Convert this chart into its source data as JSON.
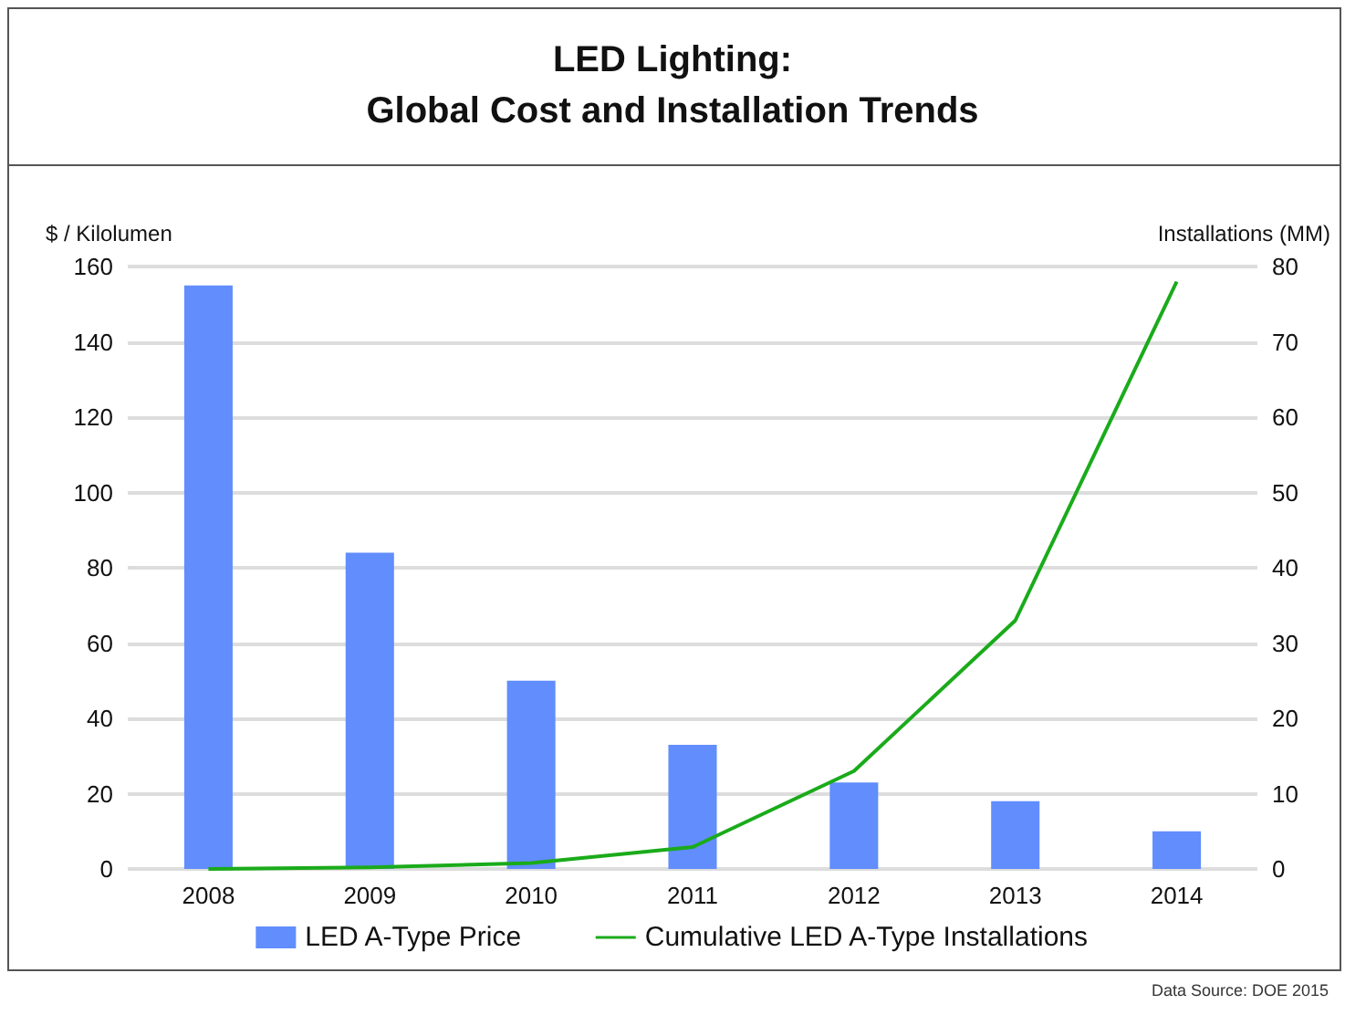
{
  "chart_data": {
    "type": "bar",
    "title": "LED Lighting:\nGlobal Cost and Installation Trends",
    "ylabel": "$ / Kilolumen",
    "y2label": "Installations (MM)",
    "categories": [
      "2008",
      "2009",
      "2010",
      "2011",
      "2012",
      "2013",
      "2014"
    ],
    "series": [
      {
        "name": "LED A-Type Price",
        "color": "#618dfd",
        "values": [
          155,
          84,
          50,
          33,
          23,
          18,
          10
        ]
      },
      {
        "name": "Cumulative LED A-Type Installations",
        "type": "line",
        "axis": "y2",
        "color": "#1aab1a",
        "values": [
          0,
          0.2,
          0.8,
          2.9,
          13,
          33,
          78
        ]
      }
    ],
    "ylim": [
      0,
      160
    ],
    "yticks": [
      0,
      20,
      40,
      60,
      80,
      100,
      120,
      140,
      160
    ],
    "y2lim": [
      0,
      80
    ],
    "y2ticks": [
      0,
      10,
      20,
      30,
      40,
      50,
      60,
      70,
      80
    ],
    "grid": "y",
    "legend": "bottom",
    "marker": "none",
    "line_style": "solid",
    "annotations": [
      "Data Source: DOE 2015"
    ]
  }
}
